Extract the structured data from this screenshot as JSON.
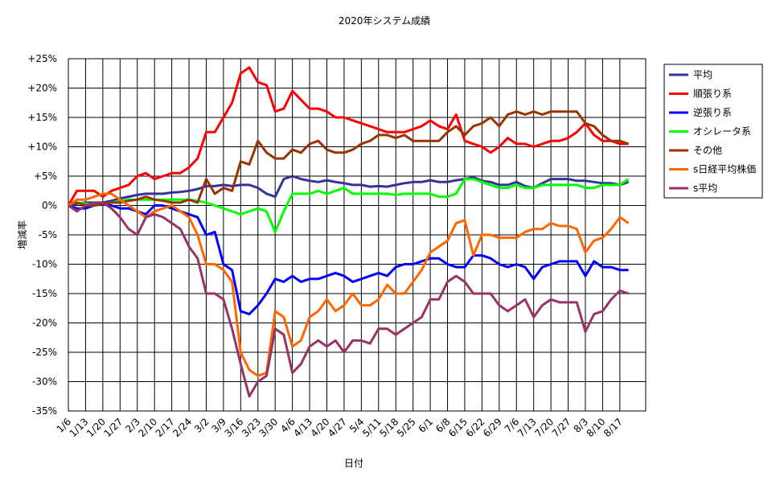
{
  "chart_data": {
    "type": "line",
    "title": "2020年システム成績",
    "x_label": "日付",
    "y_label": "増減率",
    "categories": [
      "1/6",
      null,
      "1/13",
      null,
      "1/20",
      null,
      "1/27",
      null,
      "2/3",
      null,
      "2/10",
      null,
      "2/17",
      null,
      "2/24",
      null,
      "3/2",
      null,
      "3/9",
      null,
      "3/16",
      null,
      "3/23",
      null,
      "3/30",
      null,
      "4/6",
      null,
      "4/13",
      null,
      "4/20",
      null,
      "4/27",
      null,
      "5/4",
      null,
      "5/11",
      null,
      "5/18",
      null,
      "5/25",
      null,
      "6/1",
      null,
      "6/8",
      null,
      "6/15",
      null,
      "6/22",
      null,
      "6/29",
      null,
      "7/6",
      null,
      "7/13",
      null,
      "7/20",
      null,
      "7/27",
      null,
      "8/3",
      null,
      "8/10",
      null,
      "8/17",
      null
    ],
    "ylim": [
      -35,
      25
    ],
    "yticks": [
      {
        "value": 25,
        "label": "+25%"
      },
      {
        "value": 20,
        "label": "+20%"
      },
      {
        "value": 15,
        "label": "+15%"
      },
      {
        "value": 10,
        "label": "+10%"
      },
      {
        "value": 5,
        "label": "+5%"
      },
      {
        "value": 0,
        "label": "0%"
      },
      {
        "value": -5,
        "label": "-5%"
      },
      {
        "value": -10,
        "label": "-10%"
      },
      {
        "value": -15,
        "label": "-15%"
      },
      {
        "value": -20,
        "label": "-20%"
      },
      {
        "value": -25,
        "label": "-25%"
      },
      {
        "value": -30,
        "label": "-30%"
      },
      {
        "value": -35,
        "label": "-35%"
      }
    ],
    "grid": true,
    "legend": "right",
    "series": [
      {
        "name": "平均",
        "color": "#333399",
        "values": [
          0,
          0.3,
          0.5,
          0.5,
          0.5,
          0.8,
          1.2,
          1.5,
          1.8,
          2,
          2,
          2,
          2.2,
          2.3,
          2.5,
          2.8,
          3.3,
          3.3,
          3.5,
          3.3,
          3.5,
          3.5,
          3,
          2,
          1.5,
          4.5,
          5,
          4.5,
          4.2,
          4,
          4.3,
          4,
          3.8,
          3.5,
          3.5,
          3.2,
          3.3,
          3.2,
          3.5,
          3.8,
          4,
          4,
          4.3,
          4,
          4,
          4.3,
          4.5,
          4.8,
          4.2,
          4,
          3.5,
          3.5,
          4,
          3.3,
          3,
          3.8,
          4.5,
          4.5,
          4.5,
          4.2,
          4.2,
          4,
          3.8,
          3.8,
          3.5,
          4
        ]
      },
      {
        "name": "順張り系",
        "color": "#ff0000",
        "values": [
          0,
          2.5,
          2.5,
          2.5,
          1.5,
          2.5,
          3,
          3.5,
          5,
          5.5,
          4.5,
          5,
          5.5,
          5.5,
          6.5,
          8,
          12.5,
          12.5,
          15,
          17.5,
          22.5,
          23.5,
          21,
          20.5,
          16,
          16.5,
          19.5,
          18,
          16.5,
          16.5,
          16,
          15,
          15,
          14.5,
          14,
          13.5,
          13,
          12.5,
          12.5,
          12.5,
          13,
          13.5,
          14.5,
          13.5,
          13,
          15.5,
          11,
          10.5,
          10,
          9,
          10,
          11.5,
          10.5,
          10.5,
          10,
          10.5,
          11,
          11,
          11.5,
          12.5,
          14,
          12,
          11,
          11,
          10.5,
          10.5
        ]
      },
      {
        "name": "逆張り系",
        "color": "#0000ff",
        "values": [
          0,
          -0.5,
          -0.5,
          0,
          0.2,
          0,
          -0.5,
          -0.5,
          -1,
          -1.5,
          0,
          0,
          -0.5,
          -1,
          -1.5,
          -2,
          -5,
          -4.5,
          -10,
          -11,
          -18,
          -18.5,
          -17,
          -15,
          -12.5,
          -13,
          -12,
          -13,
          -12.5,
          -12.5,
          -12,
          -11.5,
          -12,
          -13,
          -12.5,
          -12,
          -11.5,
          -12,
          -10.5,
          -10,
          -10,
          -9.5,
          -9,
          -9,
          -10,
          -10.5,
          -10.5,
          -8.5,
          -8.5,
          -9,
          -10,
          -10.5,
          -10,
          -10.5,
          -12.5,
          -10.5,
          -10,
          -9.5,
          -9.5,
          -9.5,
          -12,
          -9.5,
          -10.5,
          -10.5,
          -11,
          -11
        ]
      },
      {
        "name": "オシレータ系",
        "color": "#00ff00",
        "values": [
          0,
          0.5,
          0.3,
          0.2,
          0.3,
          0.5,
          0.8,
          1,
          1,
          1,
          1,
          1,
          1,
          1,
          1,
          0.8,
          0.5,
          0,
          -0.5,
          -1,
          -1.5,
          -1,
          -0.5,
          -1,
          -4.5,
          -1,
          2,
          2,
          2,
          2.5,
          2,
          2.5,
          3,
          2,
          2,
          2,
          2,
          2,
          1.8,
          2,
          2,
          2,
          2,
          1.5,
          1.5,
          2,
          4.5,
          4.5,
          4,
          3.5,
          3,
          3,
          3.5,
          3,
          3,
          3.5,
          3.5,
          3.5,
          3.5,
          3.5,
          3,
          3,
          3.5,
          3.5,
          3.5,
          4.5
        ]
      },
      {
        "name": "その他",
        "color": "#993300",
        "values": [
          0,
          0.5,
          0,
          0,
          0.3,
          0.5,
          0.5,
          0.8,
          1,
          1.5,
          1,
          0.8,
          0.5,
          0.5,
          1,
          0.5,
          4.5,
          2,
          3,
          2.5,
          7.5,
          7,
          11,
          9,
          8,
          8,
          9.5,
          9,
          10.5,
          11,
          9.5,
          9,
          9,
          9.5,
          10.5,
          11,
          12,
          12,
          11.5,
          12,
          11,
          11,
          11,
          11,
          12.5,
          13.5,
          12,
          13.5,
          14,
          15,
          13.5,
          15.5,
          16,
          15.5,
          16,
          15.5,
          16,
          16,
          16,
          16,
          14,
          13.5,
          12,
          11,
          11,
          10.5
        ]
      },
      {
        "name": "s日経平均株価",
        "color": "#ff6600",
        "values": [
          0,
          1,
          1,
          1.5,
          2,
          2,
          1,
          0,
          -1,
          -2,
          -1,
          -0.5,
          0,
          -1,
          -2,
          -5,
          -10,
          -10,
          -11,
          -13,
          -25,
          -28,
          -29,
          -28.5,
          -18,
          -19,
          -24,
          -23,
          -19,
          -18,
          -16,
          -18,
          -17,
          -15,
          -17,
          -17,
          -16,
          -13.5,
          -15,
          -15,
          -13,
          -11,
          -8,
          -7,
          -6,
          -3,
          -2.5,
          -8.5,
          -5,
          -5,
          -5.5,
          -5.5,
          -5.5,
          -4.5,
          -4,
          -4,
          -3,
          -3.5,
          -3.5,
          -4,
          -8,
          -6,
          -5.5,
          -4,
          -2,
          -3
        ]
      },
      {
        "name": "s平均",
        "color": "#993366",
        "values": [
          0,
          -1,
          0,
          0.5,
          0.5,
          -0.5,
          -2,
          -4,
          -5,
          -2,
          -1.5,
          -2,
          -3,
          -4,
          -7,
          -9,
          -15,
          -15,
          -16,
          -21,
          -27,
          -32.5,
          -30,
          -29,
          -21,
          -22,
          -28.5,
          -27,
          -24,
          -23,
          -24,
          -23,
          -25,
          -23,
          -23,
          -23.5,
          -21,
          -21,
          -22,
          -21,
          -20,
          -19,
          -16,
          -16,
          -13,
          -12,
          -13,
          -15,
          -15,
          -15,
          -17,
          -18,
          -17,
          -16,
          -19,
          -17,
          -16,
          -16.5,
          -16.5,
          -16.5,
          -21.5,
          -18.5,
          -18,
          -16,
          -14.5,
          -15
        ]
      }
    ]
  }
}
